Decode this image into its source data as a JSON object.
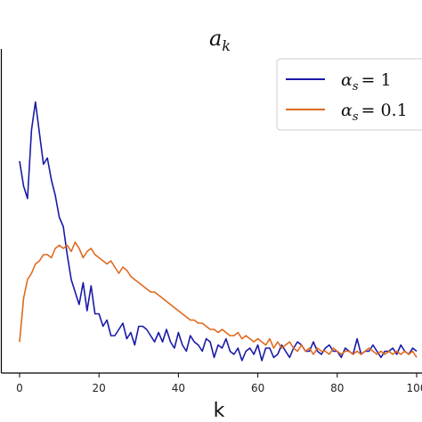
{
  "chart_data": {
    "type": "line",
    "title": "a_k",
    "title_parts": {
      "base": "a",
      "sub": "k"
    },
    "xlabel": "k",
    "ylabel": "",
    "xlim": [
      -3,
      100
    ],
    "ylim": [
      0,
      1
    ],
    "xticks": [
      0,
      20,
      40,
      60,
      80,
      100
    ],
    "xtick_labels": [
      "0",
      "20",
      "40",
      "60",
      "80",
      "100"
    ],
    "grid": false,
    "legend_placement": "top-right",
    "series": [
      {
        "name": "α_s = 1",
        "legend_parts": {
          "sym": "α",
          "sub": "s",
          "eq": "= 1"
        },
        "color": "#1a1aa8",
        "values": [
          0.66,
          0.58,
          0.54,
          0.76,
          0.85,
          0.75,
          0.65,
          0.67,
          0.6,
          0.55,
          0.48,
          0.45,
          0.36,
          0.28,
          0.24,
          0.2,
          0.27,
          0.18,
          0.26,
          0.17,
          0.17,
          0.13,
          0.15,
          0.1,
          0.1,
          0.12,
          0.14,
          0.09,
          0.11,
          0.07,
          0.13,
          0.13,
          0.12,
          0.1,
          0.08,
          0.11,
          0.08,
          0.12,
          0.08,
          0.06,
          0.11,
          0.07,
          0.05,
          0.1,
          0.08,
          0.07,
          0.05,
          0.09,
          0.08,
          0.03,
          0.07,
          0.06,
          0.09,
          0.05,
          0.04,
          0.06,
          0.02,
          0.05,
          0.06,
          0.04,
          0.07,
          0.02,
          0.06,
          0.06,
          0.03,
          0.04,
          0.07,
          0.05,
          0.03,
          0.06,
          0.08,
          0.07,
          0.05,
          0.05,
          0.08,
          0.05,
          0.04,
          0.06,
          0.07,
          0.05,
          0.05,
          0.03,
          0.06,
          0.05,
          0.04,
          0.09,
          0.04,
          0.05,
          0.05,
          0.07,
          0.05,
          0.03,
          0.05,
          0.05,
          0.06,
          0.04,
          0.07,
          0.05,
          0.04,
          0.06,
          0.05
        ]
      },
      {
        "name": "α_s = 0.1",
        "legend_parts": {
          "sym": "α",
          "sub": "s",
          "eq": "= 0.1"
        },
        "color": "#e0691e",
        "values": [
          0.08,
          0.22,
          0.28,
          0.3,
          0.33,
          0.34,
          0.36,
          0.36,
          0.35,
          0.38,
          0.39,
          0.38,
          0.39,
          0.37,
          0.4,
          0.38,
          0.35,
          0.37,
          0.38,
          0.36,
          0.35,
          0.34,
          0.33,
          0.34,
          0.32,
          0.3,
          0.32,
          0.31,
          0.29,
          0.28,
          0.27,
          0.26,
          0.25,
          0.24,
          0.24,
          0.23,
          0.22,
          0.21,
          0.2,
          0.19,
          0.18,
          0.17,
          0.16,
          0.15,
          0.15,
          0.14,
          0.14,
          0.13,
          0.12,
          0.12,
          0.11,
          0.12,
          0.11,
          0.1,
          0.1,
          0.11,
          0.09,
          0.1,
          0.09,
          0.08,
          0.09,
          0.08,
          0.07,
          0.09,
          0.06,
          0.08,
          0.06,
          0.07,
          0.08,
          0.06,
          0.05,
          0.07,
          0.05,
          0.06,
          0.04,
          0.06,
          0.05,
          0.05,
          0.04,
          0.06,
          0.05,
          0.04,
          0.05,
          0.05,
          0.04,
          0.05,
          0.04,
          0.05,
          0.06,
          0.05,
          0.04,
          0.05,
          0.04,
          0.05,
          0.04,
          0.05,
          0.04,
          0.05,
          0.04,
          0.05,
          0.03
        ]
      }
    ]
  }
}
